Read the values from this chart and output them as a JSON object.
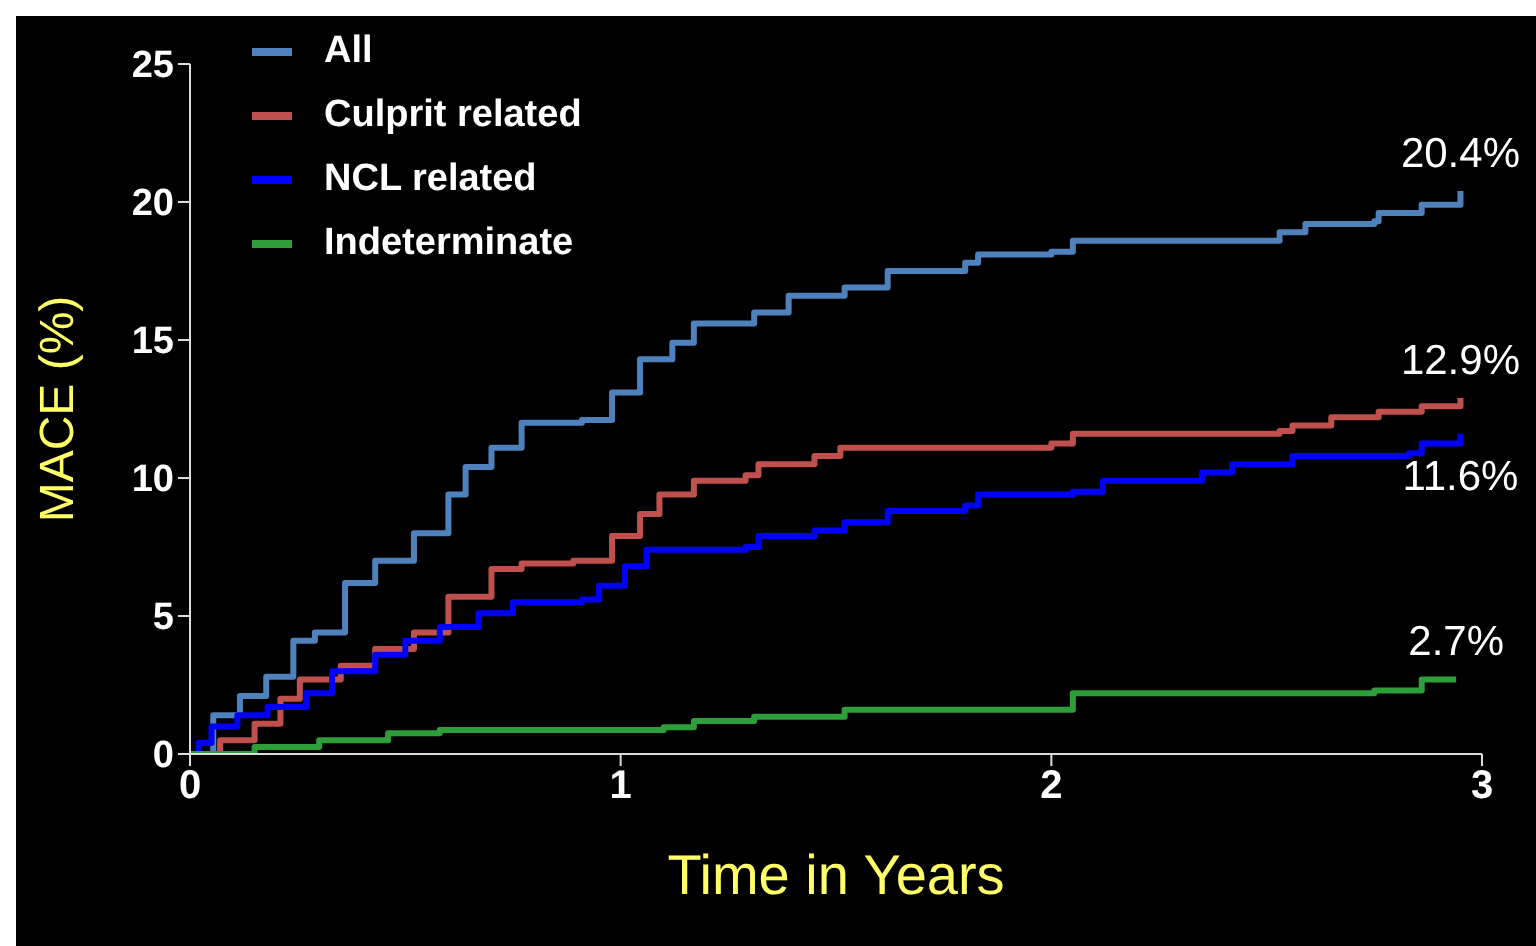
{
  "chart_data": {
    "type": "step",
    "xlabel": "Time in Years",
    "ylabel": "MACE (%)",
    "xlim": [
      0,
      3
    ],
    "xticks": [
      0,
      1,
      2,
      3
    ],
    "ylim": [
      0,
      25
    ],
    "yticks": [
      0,
      5,
      10,
      15,
      20,
      25
    ],
    "grid": false,
    "legend": "top left",
    "marker": "none",
    "line_style": "solid",
    "series": [
      {
        "name": "All",
        "color": "#4f81bd",
        "x": [
          0,
          0.054,
          0.116,
          0.177,
          0.24,
          0.29,
          0.36,
          0.43,
          0.52,
          0.6,
          0.64,
          0.7,
          0.77,
          0.91,
          0.98,
          1.045,
          1.12,
          1.17,
          1.31,
          1.39,
          1.52,
          1.62,
          1.8,
          1.83,
          2.0,
          2.05,
          2.53,
          2.59,
          2.75,
          2.76,
          2.86,
          2.95
        ],
        "values": [
          0,
          1.4,
          2.1,
          2.8,
          4.1,
          4.4,
          6.2,
          7.0,
          8.0,
          9.4,
          10.4,
          11.1,
          12.0,
          12.1,
          13.1,
          14.3,
          14.9,
          15.6,
          16.0,
          16.6,
          16.9,
          17.5,
          17.8,
          18.1,
          18.2,
          18.6,
          18.9,
          19.2,
          19.3,
          19.6,
          19.9,
          20.4
        ],
        "value_labels": [
          null,
          null,
          null,
          null,
          null,
          null,
          null,
          null,
          null,
          null,
          null,
          null,
          null,
          null,
          null,
          null,
          null,
          null,
          null,
          null,
          null,
          null,
          null,
          null,
          null,
          null,
          null,
          null,
          null,
          null,
          null,
          "20.4%"
        ]
      },
      {
        "name": "Culprit related",
        "color": "#c0504d",
        "x": [
          0,
          0.07,
          0.15,
          0.21,
          0.255,
          0.35,
          0.43,
          0.52,
          0.6,
          0.7,
          0.77,
          0.89,
          0.98,
          1.045,
          1.09,
          1.17,
          1.29,
          1.32,
          1.45,
          1.51,
          2.0,
          2.05,
          2.53,
          2.56,
          2.65,
          2.76,
          2.86,
          2.95
        ],
        "values": [
          0,
          0.5,
          1.1,
          2.0,
          2.7,
          3.2,
          3.8,
          4.4,
          5.7,
          6.7,
          6.9,
          7.0,
          7.9,
          8.7,
          9.4,
          9.9,
          10.1,
          10.5,
          10.8,
          11.1,
          11.25,
          11.6,
          11.7,
          11.9,
          12.2,
          12.4,
          12.6,
          12.9
        ],
        "value_labels": [
          null,
          null,
          null,
          null,
          null,
          null,
          null,
          null,
          null,
          null,
          null,
          null,
          null,
          null,
          null,
          null,
          null,
          null,
          null,
          null,
          null,
          null,
          null,
          null,
          null,
          null,
          null,
          "12.9%"
        ]
      },
      {
        "name": "NCL related",
        "color": "#0000ff",
        "x": [
          0,
          0.02,
          0.05,
          0.11,
          0.18,
          0.27,
          0.33,
          0.43,
          0.5,
          0.58,
          0.67,
          0.75,
          0.91,
          0.95,
          1.01,
          1.06,
          1.29,
          1.32,
          1.45,
          1.52,
          1.62,
          1.8,
          1.83,
          2.05,
          2.12,
          2.35,
          2.42,
          2.56,
          2.83,
          2.86,
          2.95
        ],
        "values": [
          0,
          0.4,
          1.0,
          1.4,
          1.7,
          2.2,
          3.0,
          3.6,
          4.1,
          4.6,
          5.1,
          5.5,
          5.6,
          6.1,
          6.8,
          7.4,
          7.5,
          7.9,
          8.1,
          8.4,
          8.8,
          9.0,
          9.4,
          9.5,
          9.9,
          10.2,
          10.5,
          10.8,
          10.9,
          11.25,
          11.6
        ],
        "value_labels": [
          null,
          null,
          null,
          null,
          null,
          null,
          null,
          null,
          null,
          null,
          null,
          null,
          null,
          null,
          null,
          null,
          null,
          null,
          null,
          null,
          null,
          null,
          null,
          null,
          null,
          null,
          null,
          null,
          null,
          null,
          "11.6%"
        ]
      },
      {
        "name": "Indeterminate",
        "color": "#2e9e3a",
        "x": [
          0,
          0.15,
          0.3,
          0.46,
          0.58,
          1.1,
          1.17,
          1.31,
          1.52,
          2.0,
          2.05,
          2.75,
          2.86,
          2.94
        ],
        "values": [
          0,
          0.25,
          0.5,
          0.75,
          0.87,
          0.97,
          1.2,
          1.35,
          1.6,
          1.6,
          2.2,
          2.3,
          2.7,
          2.7
        ],
        "value_labels": [
          null,
          null,
          null,
          null,
          null,
          null,
          null,
          null,
          null,
          null,
          null,
          null,
          null,
          "2.7%"
        ]
      }
    ]
  }
}
